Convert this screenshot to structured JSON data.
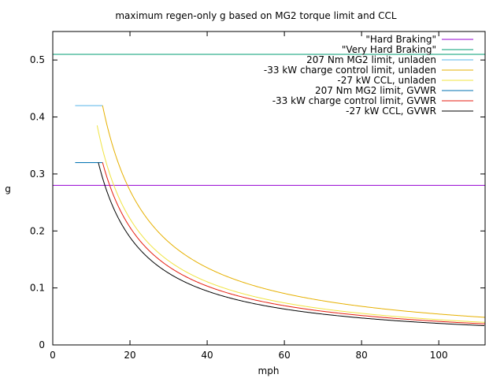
{
  "chart_data": {
    "type": "line",
    "title": "maximum regen-only g based on MG2 torque limit and CCL",
    "xlabel": "mph",
    "ylabel": "g",
    "xlim": [
      0,
      112
    ],
    "ylim": [
      0,
      0.55
    ],
    "xticks": [
      0,
      20,
      40,
      60,
      80,
      100
    ],
    "yticks": [
      0,
      0.1,
      0.2,
      0.3,
      0.4,
      0.5
    ],
    "xtick_labels": [
      "0",
      "20",
      "40",
      "60",
      "80",
      "100"
    ],
    "ytick_labels": [
      "0",
      "0.1",
      "0.2",
      "0.3",
      "0.4",
      "0.5"
    ],
    "grid": false,
    "legend_position": "top-right",
    "series": [
      {
        "name": "\"Hard Braking\"",
        "color": "#9400d3",
        "kind": "hline",
        "value": 0.28,
        "x": [
          0,
          112
        ],
        "y": [
          0.28,
          0.28
        ]
      },
      {
        "name": "\"Very Hard Braking\"",
        "color": "#009e73",
        "kind": "hline",
        "value": 0.51,
        "x": [
          0,
          112
        ],
        "y": [
          0.51,
          0.51
        ]
      },
      {
        "name": "207 Nm MG2 limit, unladen",
        "color": "#56b4e9",
        "kind": "segment",
        "x": [
          5.8,
          12.9
        ],
        "y": [
          0.42,
          0.42
        ]
      },
      {
        "name": "-33 kW charge control limit, unladen",
        "color": "#e6b000",
        "kind": "power",
        "coef": 5.42,
        "x_start": 12.9,
        "x_end": 112,
        "x": [
          12.9,
          20,
          30,
          40,
          60,
          80,
          100,
          112
        ],
        "y": [
          0.42,
          0.271,
          0.181,
          0.1355,
          0.0903,
          0.0678,
          0.0542,
          0.0484
        ]
      },
      {
        "name": "-27 kW CCL, unladen",
        "color": "#f0e442",
        "kind": "power",
        "coef": 4.43,
        "x_start": 11.5,
        "x_end": 112,
        "x": [
          11.5,
          20,
          30,
          40,
          60,
          80,
          100,
          112
        ],
        "y": [
          0.385,
          0.2215,
          0.1477,
          0.1108,
          0.0738,
          0.0554,
          0.0443,
          0.0396
        ]
      },
      {
        "name": "207 Nm MG2 limit, GVWR",
        "color": "#0072b2",
        "kind": "segment",
        "x": [
          5.8,
          12.9
        ],
        "y": [
          0.32,
          0.32
        ]
      },
      {
        "name": "-33 kW charge control limit, GVWR",
        "color": "#e51e10",
        "kind": "power",
        "coef": 4.13,
        "x_start": 12.9,
        "x_end": 112,
        "x": [
          12.9,
          20,
          30,
          40,
          60,
          80,
          100,
          112
        ],
        "y": [
          0.32,
          0.2065,
          0.1377,
          0.1033,
          0.0688,
          0.0516,
          0.0413,
          0.0369
        ]
      },
      {
        "name": "-27 kW CCL, GVWR",
        "color": "#000000",
        "kind": "power",
        "coef": 3.78,
        "x_start": 11.8,
        "x_end": 112,
        "x": [
          11.8,
          20,
          30,
          40,
          60,
          80,
          100,
          112
        ],
        "y": [
          0.32,
          0.189,
          0.126,
          0.0945,
          0.063,
          0.0473,
          0.0378,
          0.0338
        ]
      }
    ]
  }
}
